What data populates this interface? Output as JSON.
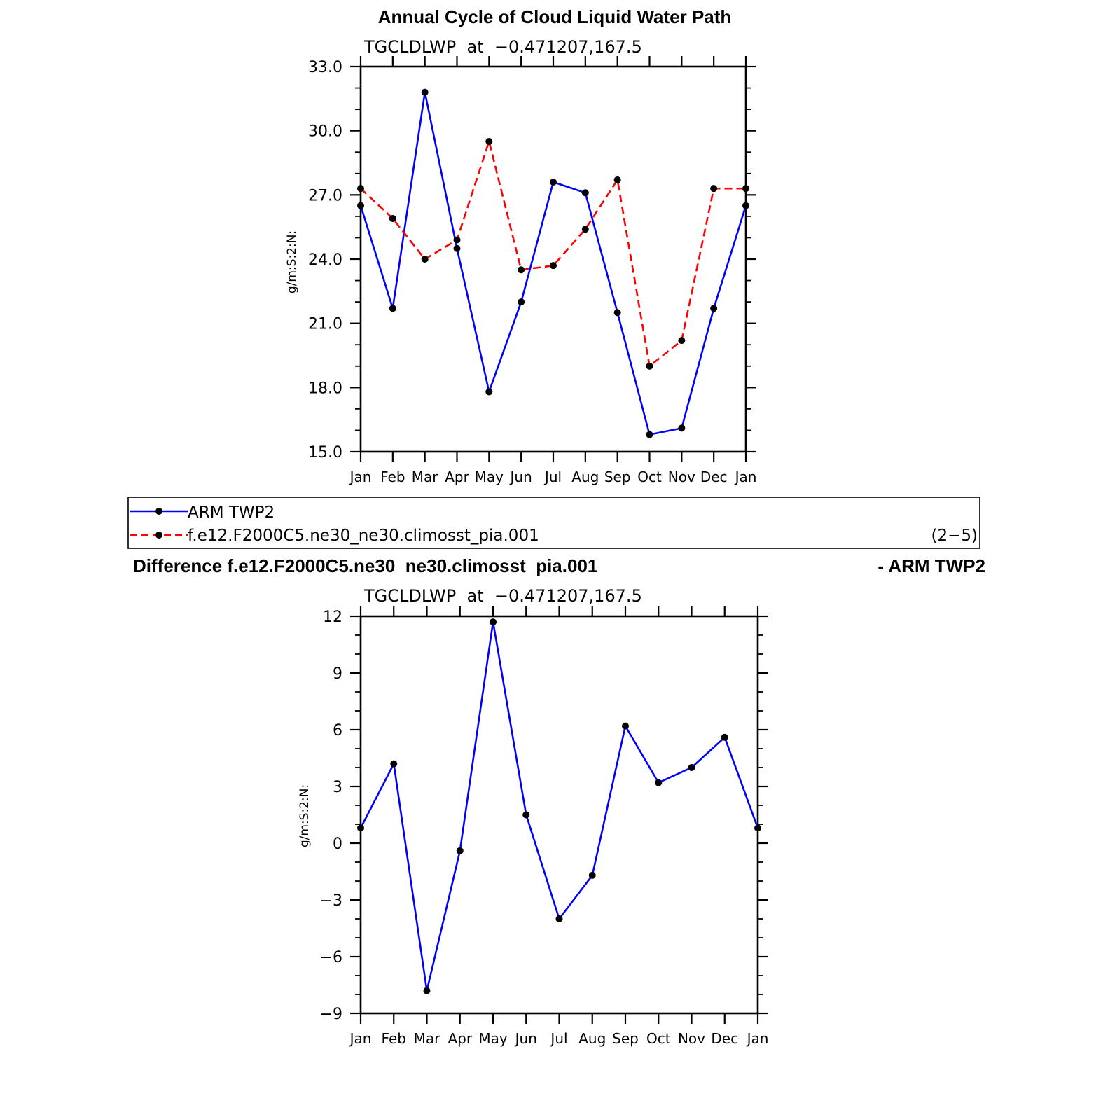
{
  "title": "Annual Cycle of Cloud Liquid Water Path",
  "legend": {
    "entries": [
      {
        "label": "ARM TWP2",
        "color": "#0000ff",
        "dash": "solid"
      },
      {
        "label": "f.e12.F2000C5.ne30_ne30.climosst_pia.001",
        "color": "#ff0000",
        "dash": "dashed"
      }
    ],
    "panel_tag": "(2−5)"
  },
  "diff_title": {
    "left": "Difference f.e12.F2000C5.ne30_ne30.climosst_pia.001",
    "right": "- ARM TWP2"
  },
  "chart_data": [
    {
      "type": "line",
      "title": "TGCLDLWP  at  −0.471207,167.5",
      "xlabel": "",
      "ylabel": "g/m:S:2:N:",
      "categories": [
        "Jan",
        "Feb",
        "Mar",
        "Apr",
        "May",
        "Jun",
        "Jul",
        "Aug",
        "Sep",
        "Oct",
        "Nov",
        "Dec",
        "Jan"
      ],
      "ylim": [
        15.0,
        33.0
      ],
      "yticks": [
        15,
        18,
        21,
        24,
        27,
        30,
        33
      ],
      "ytick_labels": [
        "15.0",
        "18.0",
        "21.0",
        "24.0",
        "27.0",
        "30.0",
        "33.0"
      ],
      "series": [
        {
          "name": "ARM TWP2",
          "color": "#0000ff",
          "dash": "solid",
          "values": [
            26.5,
            21.7,
            31.8,
            24.5,
            17.8,
            22.0,
            27.6,
            27.1,
            21.5,
            15.8,
            16.1,
            21.7,
            26.5
          ]
        },
        {
          "name": "f.e12.F2000C5.ne30_ne30.climosst_pia.001",
          "color": "#ff0000",
          "dash": "dashed",
          "values": [
            27.3,
            25.9,
            24.0,
            24.9,
            29.5,
            23.5,
            23.7,
            25.4,
            27.7,
            19.0,
            20.2,
            27.3,
            27.3
          ]
        }
      ]
    },
    {
      "type": "line",
      "title": "TGCLDLWP  at  −0.471207,167.5",
      "xlabel": "",
      "ylabel": "g/m:S:2:N:",
      "categories": [
        "Jan",
        "Feb",
        "Mar",
        "Apr",
        "May",
        "Jun",
        "Jul",
        "Aug",
        "Sep",
        "Oct",
        "Nov",
        "Dec",
        "Jan"
      ],
      "ylim": [
        -9,
        12
      ],
      "yticks": [
        -9,
        -6,
        -3,
        0,
        3,
        6,
        9,
        12
      ],
      "ytick_labels": [
        "−9",
        "−6",
        "−3",
        "0",
        "3",
        "6",
        "9",
        "12"
      ],
      "series": [
        {
          "name": "Difference",
          "color": "#0000ff",
          "dash": "solid",
          "values": [
            0.8,
            4.2,
            -7.8,
            -0.4,
            11.7,
            1.5,
            -4.0,
            -1.7,
            6.2,
            3.2,
            4.0,
            5.6,
            0.8
          ]
        }
      ]
    }
  ]
}
